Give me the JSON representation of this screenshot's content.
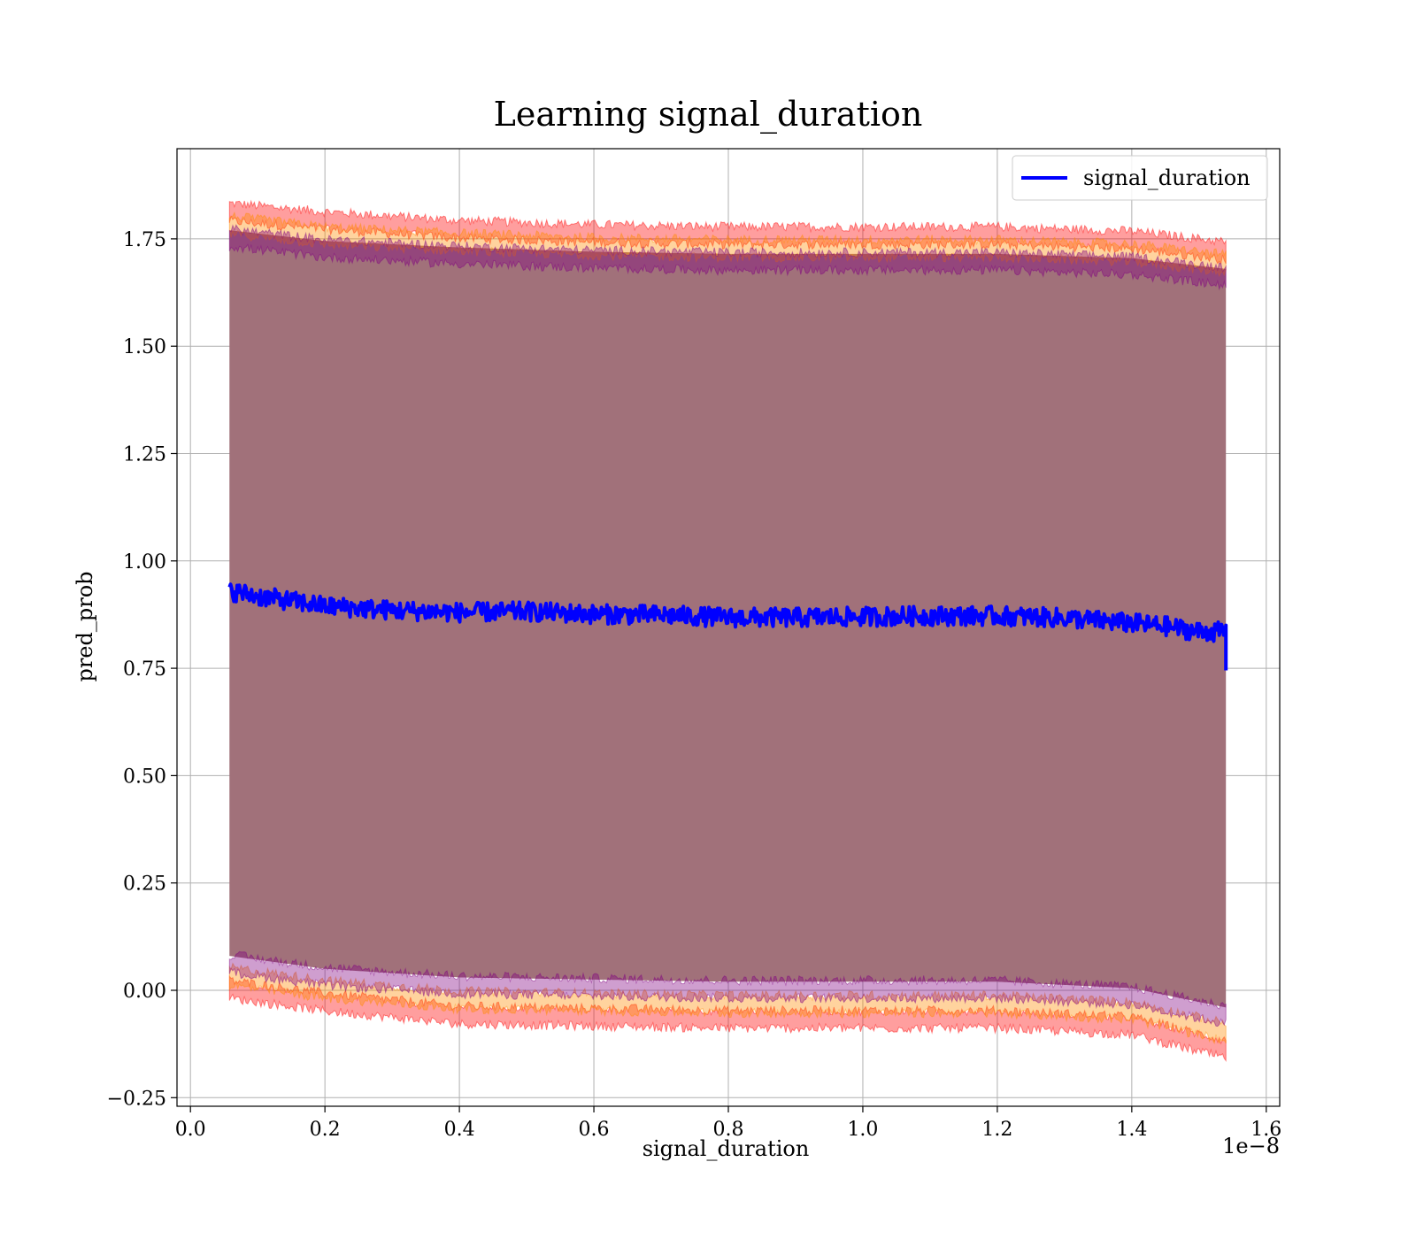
{
  "chart_data": {
    "type": "line",
    "title": "Learning signal_duration",
    "xlabel": "signal_duration",
    "ylabel": "pred_prob",
    "x_offset_text": "1e−8",
    "xlim": [
      -0.02,
      1.62
    ],
    "ylim": [
      -0.27,
      1.96
    ],
    "xticks": [
      0.0,
      0.2,
      0.4,
      0.6,
      0.8,
      1.0,
      1.2,
      1.4,
      1.6
    ],
    "xtick_labels": [
      "0.0",
      "0.2",
      "0.4",
      "0.6",
      "0.8",
      "1.0",
      "1.2",
      "1.4",
      "1.6"
    ],
    "yticks": [
      -0.25,
      0.0,
      0.25,
      0.5,
      0.75,
      1.0,
      1.25,
      1.5,
      1.75
    ],
    "ytick_labels": [
      "−0.25",
      "0.00",
      "0.25",
      "0.50",
      "0.75",
      "1.00",
      "1.25",
      "1.50",
      "1.75"
    ],
    "grid": true,
    "legend": {
      "position": "top-right",
      "entries": [
        "signal_duration"
      ]
    },
    "x_range": [
      0.058,
      1.54
    ],
    "series": [
      {
        "name": "signal_duration",
        "color": "#0000ff",
        "x": [
          0.058,
          0.1,
          0.2,
          0.3,
          0.4,
          0.5,
          0.6,
          0.7,
          0.8,
          0.9,
          1.0,
          1.1,
          1.2,
          1.3,
          1.4,
          1.45,
          1.5,
          1.54
        ],
        "y": [
          0.93,
          0.918,
          0.895,
          0.885,
          0.88,
          0.882,
          0.876,
          0.874,
          0.868,
          0.868,
          0.87,
          0.872,
          0.872,
          0.867,
          0.855,
          0.848,
          0.835,
          0.835
        ]
      }
    ],
    "bands": [
      {
        "color": "#ff0000",
        "x": [
          0.058,
          0.2,
          0.4,
          0.6,
          0.8,
          1.0,
          1.2,
          1.4,
          1.54
        ],
        "upper": [
          1.83,
          1.81,
          1.79,
          1.78,
          1.775,
          1.775,
          1.775,
          1.765,
          1.74
        ],
        "lower": [
          0.02,
          -0.01,
          -0.04,
          -0.045,
          -0.05,
          -0.05,
          -0.05,
          -0.065,
          -0.12
        ]
      },
      {
        "color": "#ff8c00",
        "x": [
          0.058,
          0.2,
          0.4,
          0.6,
          0.8,
          1.0,
          1.2,
          1.4,
          1.54
        ],
        "upper": [
          1.8,
          1.775,
          1.76,
          1.75,
          1.745,
          1.745,
          1.745,
          1.735,
          1.71
        ],
        "lower": [
          0.05,
          0.02,
          -0.005,
          -0.01,
          -0.015,
          -0.015,
          -0.015,
          -0.03,
          -0.08
        ]
      },
      {
        "color": "#800080",
        "x": [
          0.058,
          0.2,
          0.4,
          0.6,
          0.8,
          1.0,
          1.2,
          1.4,
          1.54
        ],
        "upper": [
          1.77,
          1.745,
          1.73,
          1.72,
          1.715,
          1.715,
          1.715,
          1.705,
          1.68
        ],
        "lower": [
          0.08,
          0.05,
          0.03,
          0.025,
          0.02,
          0.02,
          0.02,
          0.005,
          -0.04
        ]
      }
    ],
    "band_fill_color": "#a1717a"
  }
}
